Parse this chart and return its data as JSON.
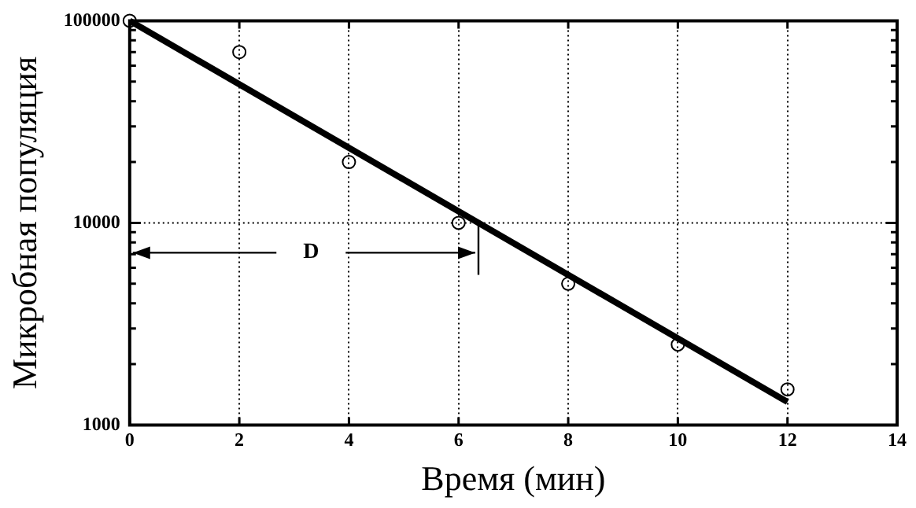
{
  "chart_data": {
    "type": "scatter",
    "xlabel": "Время (мин)",
    "ylabel": "Микробная популяция",
    "xlim": [
      0,
      14
    ],
    "xticks": [
      0,
      2,
      4,
      6,
      8,
      10,
      12,
      14
    ],
    "ylim": [
      1000,
      100000
    ],
    "log": true,
    "yticks": [
      1000,
      {
        "value": 2000,
        "label": null
      },
      {
        "value": 3000,
        "label": null
      },
      {
        "value": 4000,
        "label": null
      },
      {
        "value": 5000,
        "label": null
      },
      {
        "value": 6000,
        "label": null
      },
      {
        "value": 7000,
        "label": null
      },
      {
        "value": 8000,
        "label": null
      },
      {
        "value": 9000,
        "label": null
      },
      10000,
      {
        "value": 20000,
        "label": null
      },
      {
        "value": 30000,
        "label": null
      },
      {
        "value": 40000,
        "label": null
      },
      {
        "value": 50000,
        "label": null
      },
      {
        "value": 60000,
        "label": null
      },
      {
        "value": 70000,
        "label": null
      },
      {
        "value": 80000,
        "label": null
      },
      {
        "value": 90000,
        "label": null
      },
      100000
    ],
    "grid": "x",
    "marker": "circle",
    "series": [
      {
        "type": "scatter",
        "color": "#000000",
        "x": [
          0,
          2,
          4,
          6,
          8,
          10,
          12
        ],
        "values": [
          100000,
          70000,
          20000,
          10000,
          5000,
          2500,
          1500
        ]
      },
      {
        "type": "line",
        "color": "#000000",
        "x": [
          0,
          12
        ],
        "values": [
          100000,
          1300
        ],
        "marker": "none"
      }
    ],
    "ref_lines": [
      {
        "axis": "y",
        "value": 10000,
        "line_style": "dotted",
        "color": "#000000"
      }
    ],
    "annotations": [
      "D"
    ]
  }
}
